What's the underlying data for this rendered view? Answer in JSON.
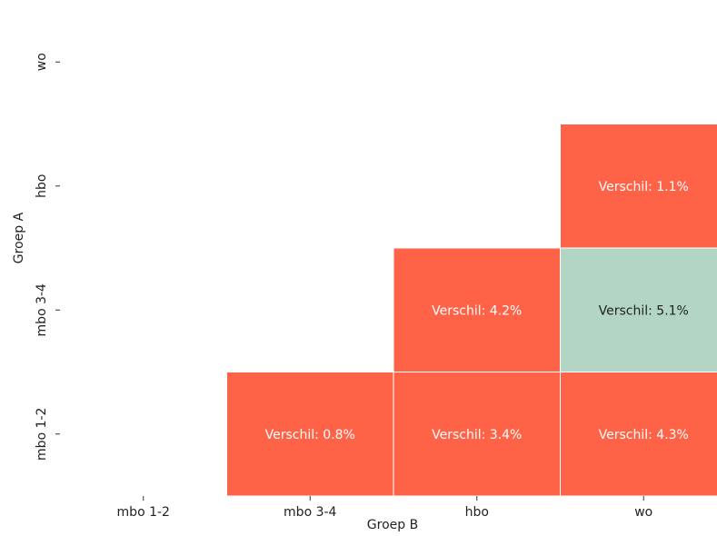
{
  "chart_data": {
    "type": "heatmap",
    "title": "",
    "xlabel": "Groep B",
    "ylabel": "Groep A",
    "x_categories": [
      "mbo 1-2",
      "mbo 3-4",
      "hbo",
      "wo"
    ],
    "y_categories": [
      "mbo 1-2",
      "mbo 3-4",
      "hbo",
      "wo"
    ],
    "cells": [
      {
        "row": "mbo 1-2",
        "col": "mbo 3-4",
        "value": 0.8,
        "label": "Verschil: 0.8%",
        "color": "#ff6347",
        "text_color": "#ffffff"
      },
      {
        "row": "mbo 1-2",
        "col": "hbo",
        "value": 3.4,
        "label": "Verschil: 3.4%",
        "color": "#ff6347",
        "text_color": "#ffffff"
      },
      {
        "row": "mbo 1-2",
        "col": "wo",
        "value": 4.3,
        "label": "Verschil: 4.3%",
        "color": "#ff6347",
        "text_color": "#ffffff"
      },
      {
        "row": "mbo 3-4",
        "col": "hbo",
        "value": 4.2,
        "label": "Verschil: 4.2%",
        "color": "#ff6347",
        "text_color": "#ffffff"
      },
      {
        "row": "mbo 3-4",
        "col": "wo",
        "value": 5.1,
        "label": "Verschil: 5.1%",
        "color": "#b3d5c4",
        "text_color": "#222222"
      },
      {
        "row": "hbo",
        "col": "wo",
        "value": 1.1,
        "label": "Verschil: 1.1%",
        "color": "#ff6347",
        "text_color": "#ffffff"
      }
    ],
    "grid": false,
    "legend": "none"
  }
}
